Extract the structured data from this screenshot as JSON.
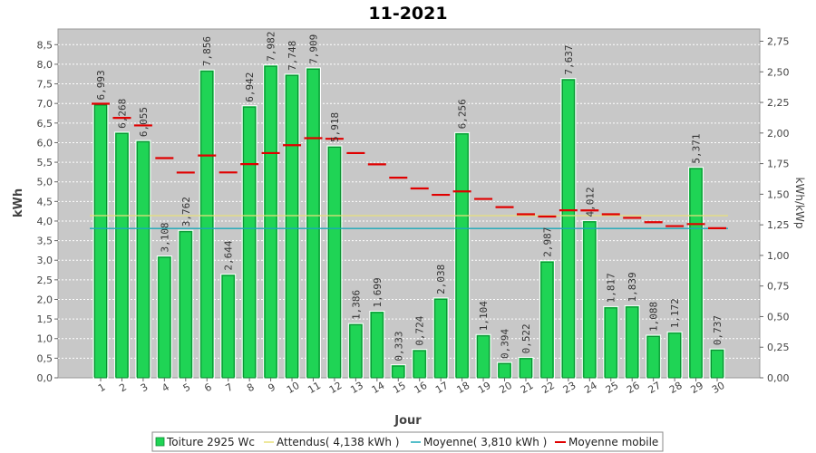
{
  "chart_data": {
    "type": "bar",
    "title": "11-2021",
    "xlabel": "Jour",
    "ylabel": "kWh",
    "ylabel_right": "kWh/kWp",
    "ylim": [
      0,
      8.9
    ],
    "ylim_right": [
      0,
      2.85
    ],
    "yticks": [
      "0,0",
      "0,5",
      "1,0",
      "1,5",
      "2,0",
      "2,5",
      "3,0",
      "3,5",
      "4,0",
      "4,5",
      "5,0",
      "5,5",
      "6,0",
      "6,5",
      "7,0",
      "7,5",
      "8,0",
      "8,5"
    ],
    "yticks_right": [
      "0,00",
      "0,25",
      "0,50",
      "0,75",
      "1,00",
      "1,25",
      "1,50",
      "1,75",
      "2,00",
      "2,25",
      "2,50",
      "2,75"
    ],
    "categories": [
      "1",
      "2",
      "3",
      "4",
      "5",
      "6",
      "7",
      "8",
      "9",
      "10",
      "11",
      "12",
      "13",
      "14",
      "15",
      "16",
      "17",
      "18",
      "19",
      "20",
      "21",
      "22",
      "23",
      "24",
      "25",
      "26",
      "27",
      "28",
      "29",
      "30"
    ],
    "series": [
      {
        "name": "Toiture 2925 Wc",
        "kind": "bar",
        "color": "#1fd455",
        "values": [
          6.993,
          6.268,
          6.055,
          3.108,
          3.762,
          7.856,
          2.644,
          6.942,
          7.982,
          7.748,
          7.909,
          5.918,
          1.386,
          1.699,
          0.333,
          0.724,
          2.038,
          6.256,
          1.104,
          0.394,
          0.522,
          2.987,
          7.637,
          4.012,
          1.817,
          1.839,
          1.088,
          1.172,
          5.371,
          0.737
        ],
        "labels": [
          "6,993",
          "6,268",
          "6,055",
          "3,108",
          "3,762",
          "7,856",
          "2,644",
          "6,942",
          "7,982",
          "7,748",
          "7,909",
          "5,918",
          "1,386",
          "1,699",
          "0,333",
          "0,724",
          "2,038",
          "6,256",
          "1,104",
          "0,394",
          "0,522",
          "2,987",
          "7,637",
          "4,012",
          "1,817",
          "1,839",
          "1,088",
          "1,172",
          "5,371",
          "0,737"
        ]
      },
      {
        "name": "Attendus( 4,138 kWh )",
        "kind": "hline",
        "color": "#e8e07a",
        "value": 4.138
      },
      {
        "name": "Moyenne( 3,810 kWh )",
        "kind": "hline",
        "color": "#1aa8b8",
        "value": 3.81
      },
      {
        "name": "Moyenne mobile",
        "kind": "step",
        "color": "#e00000",
        "values": [
          6.993,
          6.631,
          6.439,
          5.606,
          5.237,
          5.673,
          5.24,
          5.453,
          5.734,
          5.935,
          6.114,
          6.098,
          5.735,
          5.447,
          5.106,
          4.832,
          4.668,
          4.756,
          4.564,
          4.355,
          4.173,
          4.115,
          4.273,
          4.27,
          4.172,
          4.082,
          3.971,
          3.871,
          3.923,
          3.817
        ]
      }
    ],
    "legend_position": "bottom",
    "grid": true
  }
}
